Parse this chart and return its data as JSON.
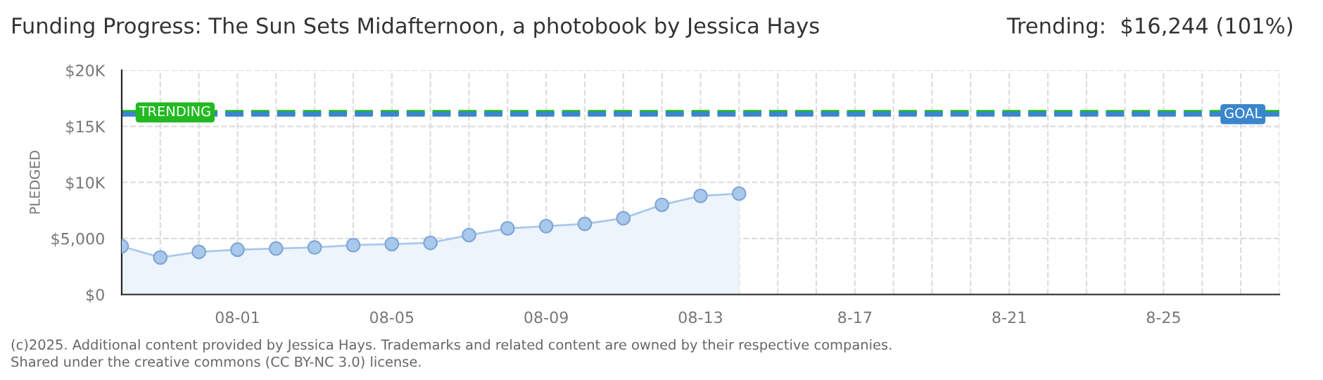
{
  "chart_data": {
    "type": "area",
    "title": "Funding Progress: The Sun Sets Midafternoon, a photobook by Jessica Hays",
    "subtitle": "Trending:  $16,244 (101%)",
    "ylabel": "PLEDGED",
    "annotations": [
      "(c)2025. Additional content provided by Jessica Hays. Trademarks and related content are owned by their respective companies.",
      "Shared under the creative commons (CC BY-NC 3.0) license."
    ],
    "x": [
      "2025-07-29",
      "2025-07-30",
      "2025-07-31",
      "2025-08-01",
      "2025-08-02",
      "2025-08-03",
      "2025-08-04",
      "2025-08-05",
      "2025-08-06",
      "2025-08-07",
      "2025-08-08",
      "2025-08-09",
      "2025-08-10",
      "2025-08-11",
      "2025-08-12",
      "2025-08-13",
      "2025-08-14"
    ],
    "series": [
      {
        "color": "#a8c8ec",
        "values": [
          4300,
          3300,
          3800,
          4000,
          4100,
          4200,
          4400,
          4500,
          4600,
          5300,
          5900,
          6100,
          6300,
          6800,
          8000,
          8800,
          9000
        ]
      }
    ],
    "xlim": [
      "2025-07-29",
      "2025-08-28"
    ],
    "xticks": [
      {
        "value": "2025-07-29",
        "label": null
      },
      {
        "value": "2025-07-30",
        "label": null
      },
      {
        "value": "2025-07-31",
        "label": null
      },
      {
        "value": "2025-08-01",
        "label": "08-01"
      },
      {
        "value": "2025-08-02",
        "label": null
      },
      {
        "value": "2025-08-03",
        "label": null
      },
      {
        "value": "2025-08-04",
        "label": null
      },
      {
        "value": "2025-08-05",
        "label": "08-05"
      },
      {
        "value": "2025-08-06",
        "label": null
      },
      {
        "value": "2025-08-07",
        "label": null
      },
      {
        "value": "2025-08-08",
        "label": null
      },
      {
        "value": "2025-08-09",
        "label": "08-09"
      },
      {
        "value": "2025-08-10",
        "label": null
      },
      {
        "value": "2025-08-11",
        "label": null
      },
      {
        "value": "2025-08-12",
        "label": null
      },
      {
        "value": "2025-08-13",
        "label": "08-13"
      },
      {
        "value": "2025-08-14",
        "label": null
      },
      {
        "value": "2025-08-15",
        "label": null
      },
      {
        "value": "2025-08-16",
        "label": null
      },
      {
        "value": "2025-08-17",
        "label": "8-17"
      },
      {
        "value": "2025-08-18",
        "label": null
      },
      {
        "value": "2025-08-19",
        "label": null
      },
      {
        "value": "2025-08-20",
        "label": null
      },
      {
        "value": "2025-08-21",
        "label": "8-21"
      },
      {
        "value": "2025-08-22",
        "label": null
      },
      {
        "value": "2025-08-23",
        "label": null
      },
      {
        "value": "2025-08-24",
        "label": null
      },
      {
        "value": "2025-08-25",
        "label": "8-25"
      },
      {
        "value": "2025-08-26",
        "label": null
      },
      {
        "value": "2025-08-27",
        "label": null
      },
      {
        "value": "2025-08-28",
        "label": null
      }
    ],
    "ylim": [
      0,
      20000
    ],
    "yticks": [
      {
        "value": 0,
        "label": "$0"
      },
      {
        "value": 5000,
        "label": "$5,000"
      },
      {
        "value": 10000,
        "label": "$10K"
      },
      {
        "value": 15000,
        "label": "$15K"
      },
      {
        "value": 20000,
        "label": "$20K"
      }
    ],
    "ref_lines": [
      {
        "axis": "y",
        "value": 16244,
        "label": "TRENDING",
        "color": "#22b922",
        "line_style": "dashed"
      },
      {
        "axis": "y",
        "value": 16083,
        "label": "GOAL",
        "color": "#3a86cc",
        "line_style": "dashed"
      }
    ],
    "grid": true,
    "marker": "circle",
    "line_style": "solid",
    "legend": false
  }
}
